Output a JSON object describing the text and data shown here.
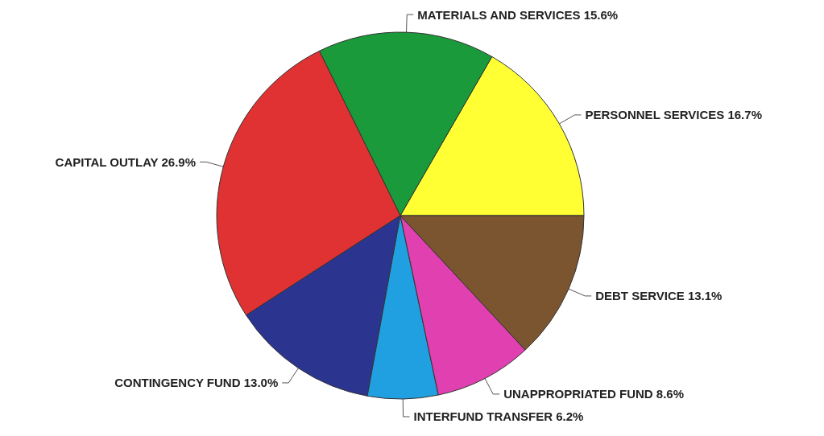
{
  "chart_data": {
    "type": "pie",
    "categories": [
      "PERSONNEL SERVICES",
      "MATERIALS AND SERVICES",
      "CAPITAL OUTLAY",
      "CONTINGENCY FUND",
      "INTERFUND TRANSFER",
      "UNAPPROPRIATED FUND",
      "DEBT SERVICE"
    ],
    "values": [
      16.7,
      15.6,
      26.9,
      13.0,
      6.2,
      8.6,
      13.1
    ],
    "value_labels": [
      "16.7%",
      "15.6%",
      "26.9%",
      "13.0%",
      "6.2%",
      "8.6%",
      "13.1%"
    ],
    "colors": [
      "#ffff33",
      "#1a9a3a",
      "#e03232",
      "#2b3590",
      "#20a0e0",
      "#e040b0",
      "#7a5530"
    ],
    "legend": false
  }
}
